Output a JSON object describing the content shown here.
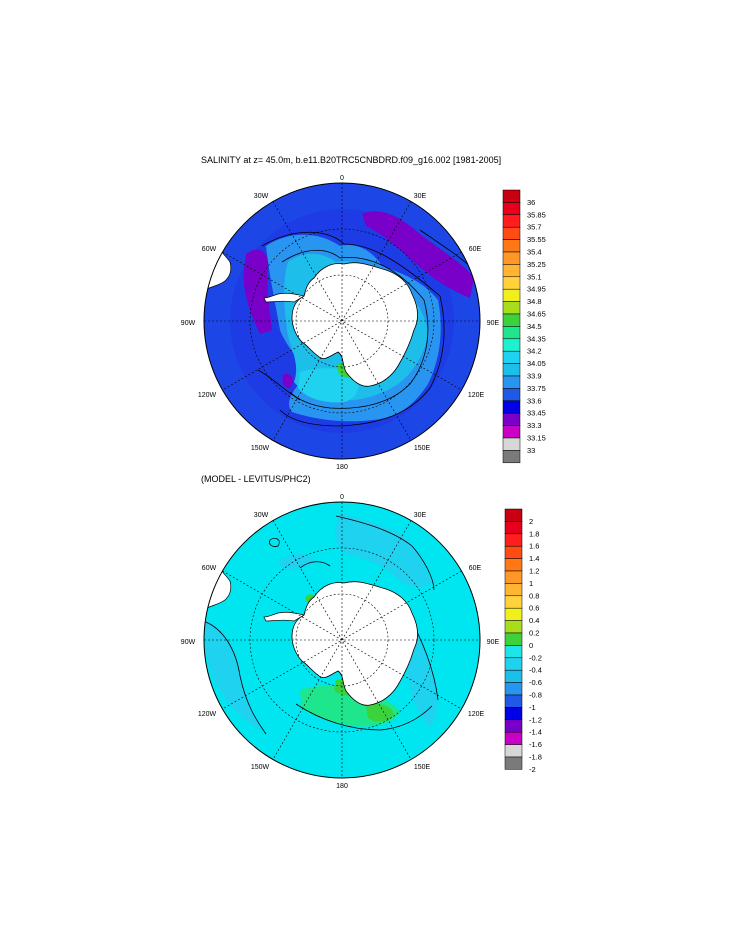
{
  "top_panel": {
    "title": "SALINITY at z=  45.0m, b.e11.B20TRC5CNBDRD.f09_g16.002 [1981-2005]",
    "lon_labels": {
      "n": "0",
      "nne": "30E",
      "ne": "60E",
      "e": "90E",
      "se": "120E",
      "sse": "150E",
      "s": "180",
      "ssw": "150W",
      "sw": "120W",
      "w": "90W",
      "nw": "60W",
      "nnw": "30W"
    },
    "colorbar": {
      "labels": [
        "36",
        "35.85",
        "35.7",
        "35.55",
        "35.4",
        "35.25",
        "35.1",
        "34.95",
        "34.8",
        "34.65",
        "34.5",
        "34.35",
        "34.2",
        "34.05",
        "33.9",
        "33.75",
        "33.6",
        "33.45",
        "33.3",
        "33.15",
        "33"
      ],
      "colors": [
        "#c8000f",
        "#e6001e",
        "#ff1e1e",
        "#ff4b14",
        "#ff7814",
        "#ff9628",
        "#ffb432",
        "#ffd23c",
        "#f0f01e",
        "#aadc1e",
        "#3cd23c",
        "#1ee68c",
        "#1ef0d2",
        "#1ed2f0",
        "#1ebeeb",
        "#2896f0",
        "#1e5ae6",
        "#0000e6",
        "#7800c8",
        "#c800c8",
        "#d7d7d7",
        "#7a7a7a"
      ]
    }
  },
  "bottom_panel": {
    "title": "(MODEL - LEVITUS/PHC2)",
    "lon_labels": {
      "n": "0",
      "nne": "30E",
      "ne": "60E",
      "e": "90E",
      "se": "120E",
      "sse": "150E",
      "s": "180",
      "ssw": "150W",
      "sw": "120W",
      "w": "90W",
      "nw": "60W",
      "nnw": "30W"
    },
    "colorbar": {
      "labels": [
        "2",
        "1.8",
        "1.6",
        "1.4",
        "1.2",
        "1",
        "0.8",
        "0.6",
        "0.4",
        "0.2",
        "0",
        "-0.2",
        "-0.4",
        "-0.6",
        "-0.8",
        "-1",
        "-1.2",
        "-1.4",
        "-1.6",
        "-1.8",
        "-2"
      ],
      "colors": [
        "#c8000f",
        "#e6001e",
        "#ff1e1e",
        "#ff4b14",
        "#ff7814",
        "#ff9628",
        "#ffb432",
        "#ffd23c",
        "#f0f01e",
        "#aadc1e",
        "#3cd23c",
        "#1ee6e6",
        "#1ed2f0",
        "#1ebeeb",
        "#2896f0",
        "#1e5ae6",
        "#0000e6",
        "#7800c8",
        "#c800c8",
        "#d7d7d7",
        "#7a7a7a"
      ]
    }
  },
  "map_colors": {
    "ocean_top": "#1e3ce6",
    "ocean_bottom": "#00e6f0",
    "land": "#ffffff",
    "coast": "#000000",
    "grid": "#000000"
  }
}
